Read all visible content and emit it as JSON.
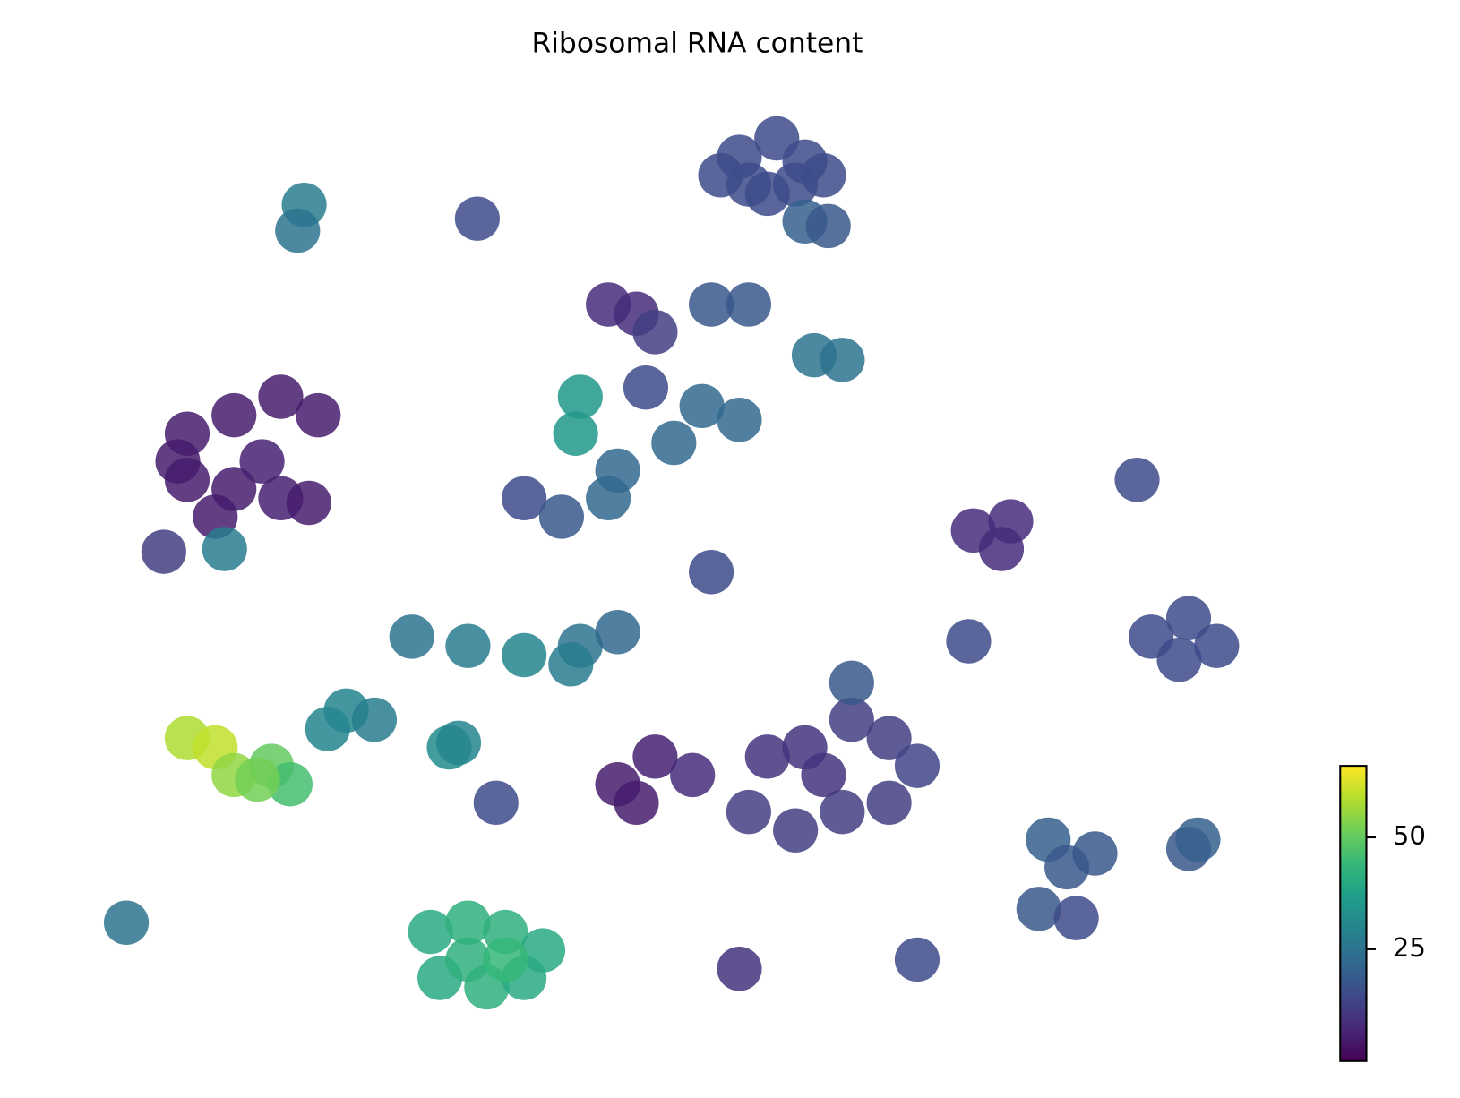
{
  "chart_data": {
    "type": "scatter",
    "title": "Ribosomal RNA content",
    "colormap": "viridis",
    "xlim": [
      0,
      156
    ],
    "ylim": [
      0,
      119
    ],
    "x": [
      79,
      83,
      86,
      80,
      85,
      88,
      77,
      82,
      86,
      88.5,
      32.5,
      31.8,
      51,
      68,
      65,
      70,
      76,
      80,
      87,
      90,
      62,
      61.5,
      75,
      79,
      72,
      69,
      56,
      60,
      65,
      66,
      20,
      25,
      30,
      34,
      20,
      25,
      30,
      33,
      23,
      28,
      19,
      104,
      108,
      107,
      123,
      127,
      130,
      126,
      44,
      50,
      56,
      62,
      66,
      61,
      37,
      35,
      40,
      48,
      20,
      23,
      25,
      29,
      31,
      27.5,
      46,
      50,
      54,
      58,
      47,
      52,
      56,
      50,
      54,
      82,
      86,
      91,
      95,
      98,
      80,
      85,
      90,
      95,
      88,
      91,
      66,
      70,
      74,
      68,
      112,
      117,
      114,
      111,
      115,
      127,
      128,
      13.5,
      79,
      98,
      53,
      76,
      103.5,
      121.5,
      49,
      17.5,
      24
    ],
    "y": [
      102,
      104,
      101.5,
      99,
      99,
      100,
      100,
      98,
      95,
      94.5,
      96.8,
      94,
      95.3,
      85,
      86,
      83,
      86,
      86,
      80.5,
      80,
      76,
      72,
      75,
      73.5,
      71,
      77,
      65,
      63,
      65,
      68,
      72,
      74,
      76,
      74,
      67,
      66,
      65,
      64.5,
      63,
      69,
      69,
      61.5,
      62.5,
      59.5,
      50,
      52,
      49,
      47.5,
      50,
      49,
      48,
      49,
      50.5,
      47,
      42,
      40,
      41,
      38,
      39,
      38,
      35,
      36,
      34,
      34.5,
      18,
      19,
      18,
      16,
      13,
      12,
      13,
      15,
      15,
      37,
      38,
      41,
      39,
      36,
      31,
      29,
      31,
      32,
      35,
      45,
      34,
      37,
      35,
      32,
      28,
      26.5,
      25,
      20.5,
      19.5,
      27,
      28,
      19,
      14,
      15,
      32,
      57,
      49.5,
      67,
      38.5,
      59.2,
      59.5
    ],
    "values": [
      15,
      15,
      15,
      15,
      15,
      15,
      15,
      15,
      20,
      18,
      28,
      25,
      15,
      8,
      8,
      12,
      18,
      18,
      25,
      25,
      35,
      35,
      22,
      22,
      22,
      15,
      15,
      18,
      22,
      22,
      5,
      5,
      5,
      5,
      5,
      5,
      6,
      5,
      5,
      6,
      5,
      8,
      8,
      8,
      15,
      15,
      15,
      15,
      25,
      28,
      30,
      25,
      22,
      28,
      30,
      30,
      28,
      32,
      58,
      60,
      55,
      50,
      46,
      52,
      40,
      42,
      42,
      40,
      40,
      42,
      40,
      42,
      44,
      10,
      10,
      12,
      12,
      14,
      12,
      12,
      12,
      12,
      10,
      18,
      5,
      6,
      8,
      5,
      20,
      18,
      18,
      18,
      15,
      18,
      20,
      25,
      10,
      15,
      15,
      15,
      15,
      15,
      30,
      12,
      28
    ],
    "clim": [
      0,
      66
    ],
    "cticks": [
      25,
      50
    ]
  }
}
